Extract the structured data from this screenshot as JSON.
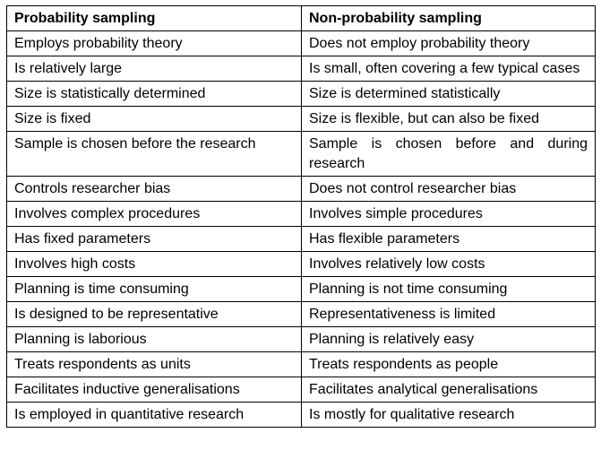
{
  "table": {
    "headers": [
      "Probability sampling",
      "Non-probability sampling"
    ],
    "rows": [
      [
        "Employs probability theory",
        "Does not employ probability theory"
      ],
      [
        "Is relatively large",
        "Is small, often covering a few typical cases"
      ],
      [
        "Size is statistically determined",
        "Size is determined statistically"
      ],
      [
        "Size is fixed",
        "Size is flexible, but can also be fixed"
      ],
      [
        "Sample is chosen before the research",
        "Sample is chosen before and during research"
      ],
      [
        "Controls researcher bias",
        "Does not control researcher bias"
      ],
      [
        "Involves complex procedures",
        "Involves simple procedures"
      ],
      [
        "Has fixed parameters",
        "Has flexible parameters"
      ],
      [
        "Involves high costs",
        "Involves relatively low costs"
      ],
      [
        "Planning is time consuming",
        "Planning is not time consuming"
      ],
      [
        "Is designed to be representative",
        "Representativeness is limited"
      ],
      [
        "Planning is laborious",
        "Planning is relatively easy"
      ],
      [
        "Treats respondents as units",
        "Treats respondents as people"
      ],
      [
        "Facilitates inductive generalisations",
        "Facilitates analytical generalisations"
      ],
      [
        "Is employed in quantitative research",
        "Is mostly for qualitative research"
      ]
    ]
  }
}
